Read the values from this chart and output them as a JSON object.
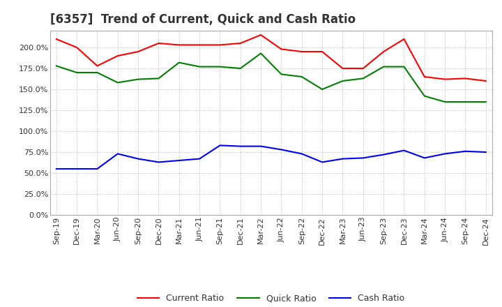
{
  "title": "[6357]  Trend of Current, Quick and Cash Ratio",
  "x_labels": [
    "Sep-19",
    "Dec-19",
    "Mar-20",
    "Jun-20",
    "Sep-20",
    "Dec-20",
    "Mar-21",
    "Jun-21",
    "Sep-21",
    "Dec-21",
    "Mar-22",
    "Jun-22",
    "Sep-22",
    "Dec-22",
    "Mar-23",
    "Jun-23",
    "Sep-23",
    "Dec-23",
    "Mar-24",
    "Jun-24",
    "Sep-24",
    "Dec-24"
  ],
  "current_ratio": [
    210,
    200,
    178,
    190,
    195,
    205,
    203,
    203,
    203,
    205,
    215,
    198,
    195,
    195,
    175,
    175,
    195,
    210,
    165,
    162,
    163,
    160
  ],
  "quick_ratio": [
    178,
    170,
    170,
    158,
    162,
    163,
    182,
    177,
    177,
    175,
    193,
    168,
    165,
    150,
    160,
    163,
    177,
    177,
    142,
    135,
    135,
    135
  ],
  "cash_ratio": [
    55,
    55,
    55,
    73,
    67,
    63,
    65,
    67,
    83,
    82,
    82,
    78,
    73,
    63,
    67,
    68,
    72,
    77,
    68,
    73,
    76,
    75
  ],
  "ylim": [
    0,
    220
  ],
  "yticks": [
    0,
    25,
    50,
    75,
    100,
    125,
    150,
    175,
    200
  ],
  "colors": {
    "current": "#FF0000",
    "quick": "#008000",
    "cash": "#0000FF"
  },
  "legend_labels": [
    "Current Ratio",
    "Quick Ratio",
    "Cash Ratio"
  ],
  "background_color": "#ffffff",
  "grid_color": "#aaaaaa",
  "title_fontsize": 12,
  "tick_fontsize": 8,
  "legend_fontsize": 9
}
